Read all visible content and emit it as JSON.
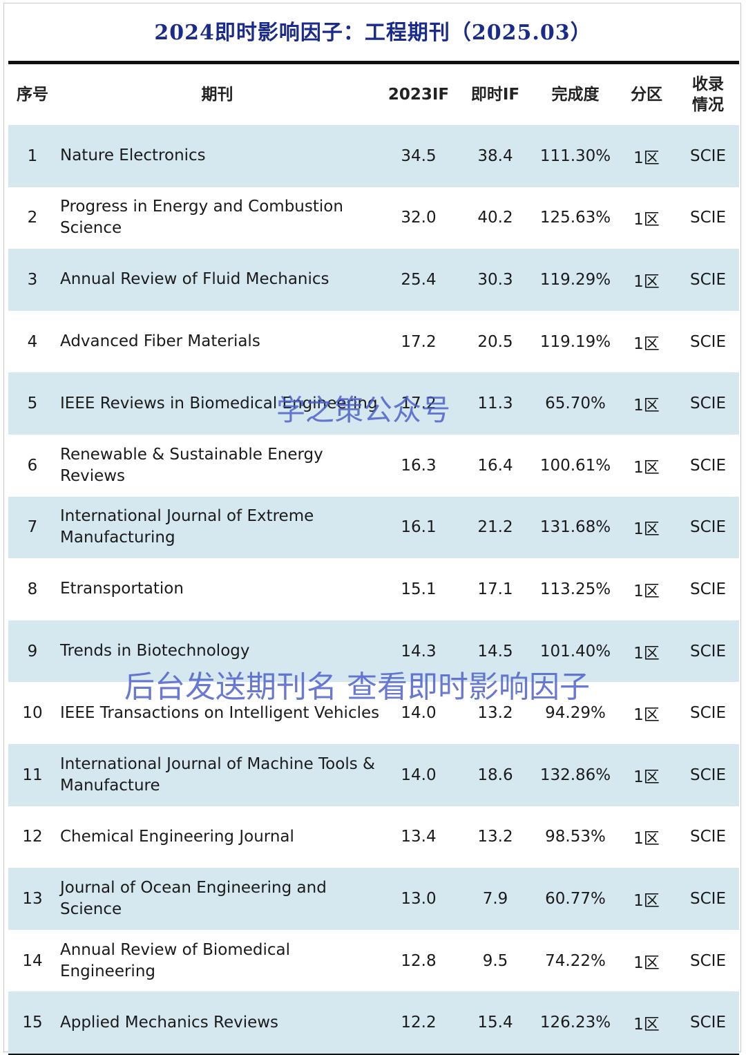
{
  "title": "2024即时影响因子：工程期刊（2025.03）",
  "headers": {
    "num": "序号",
    "journal": "期刊",
    "if2023": "2023IF",
    "if_now": "即时IF",
    "completion": "完成度",
    "zone": "分区",
    "inclusion": "收录情况"
  },
  "rows": [
    {
      "num": "1",
      "name": "Nature Electronics",
      "if2023": "34.5",
      "if_now": "38.4",
      "completion": "111.30%",
      "zone": "1区",
      "inclusion": "SCIE"
    },
    {
      "num": "2",
      "name": "Progress in Energy and Combustion Science",
      "if2023": "32.0",
      "if_now": "40.2",
      "completion": "125.63%",
      "zone": "1区",
      "inclusion": "SCIE"
    },
    {
      "num": "3",
      "name": "Annual Review of Fluid Mechanics",
      "if2023": "25.4",
      "if_now": "30.3",
      "completion": "119.29%",
      "zone": "1区",
      "inclusion": "SCIE"
    },
    {
      "num": "4",
      "name": "Advanced Fiber Materials",
      "if2023": "17.2",
      "if_now": "20.5",
      "completion": "119.19%",
      "zone": "1区",
      "inclusion": "SCIE"
    },
    {
      "num": "5",
      "name": "IEEE Reviews in Biomedical Engineering",
      "if2023": "17.2",
      "if_now": "11.3",
      "completion": "65.70%",
      "zone": "1区",
      "inclusion": "SCIE"
    },
    {
      "num": "6",
      "name": "Renewable & Sustainable Energy Reviews",
      "if2023": "16.3",
      "if_now": "16.4",
      "completion": "100.61%",
      "zone": "1区",
      "inclusion": "SCIE"
    },
    {
      "num": "7",
      "name": "International Journal of Extreme Manufacturing",
      "if2023": "16.1",
      "if_now": "21.2",
      "completion": "131.68%",
      "zone": "1区",
      "inclusion": "SCIE"
    },
    {
      "num": "8",
      "name": "Etransportation",
      "if2023": "15.1",
      "if_now": "17.1",
      "completion": "113.25%",
      "zone": "1区",
      "inclusion": "SCIE"
    },
    {
      "num": "9",
      "name": "Trends in Biotechnology",
      "if2023": "14.3",
      "if_now": "14.5",
      "completion": "101.40%",
      "zone": "1区",
      "inclusion": "SCIE"
    },
    {
      "num": "10",
      "name": "IEEE Transactions on Intelligent Vehicles",
      "if2023": "14.0",
      "if_now": "13.2",
      "completion": "94.29%",
      "zone": "1区",
      "inclusion": "SCIE"
    },
    {
      "num": "11",
      "name": "International Journal of Machine Tools & Manufacture",
      "if2023": "14.0",
      "if_now": "18.6",
      "completion": "132.86%",
      "zone": "1区",
      "inclusion": "SCIE"
    },
    {
      "num": "12",
      "name": "Chemical Engineering Journal",
      "if2023": "13.4",
      "if_now": "13.2",
      "completion": "98.53%",
      "zone": "1区",
      "inclusion": "SCIE"
    },
    {
      "num": "13",
      "name": "Journal of Ocean Engineering and Science",
      "if2023": "13.0",
      "if_now": "7.9",
      "completion": "60.77%",
      "zone": "1区",
      "inclusion": "SCIE"
    },
    {
      "num": "14",
      "name": "Annual Review of Biomedical Engineering",
      "if2023": "12.8",
      "if_now": "9.5",
      "completion": "74.22%",
      "zone": "1区",
      "inclusion": "SCIE"
    },
    {
      "num": "15",
      "name": "Applied Mechanics Reviews",
      "if2023": "12.2",
      "if_now": "15.4",
      "completion": "126.23%",
      "zone": "1区",
      "inclusion": "SCIE"
    }
  ],
  "watermarks": {
    "account": "学之策公众号",
    "hint": "后台发送期刊名 查看即时影响因子"
  },
  "colors": {
    "title": "#1a2b8c",
    "row_shade": "#d6e8ef",
    "watermark": "#485cc8"
  }
}
